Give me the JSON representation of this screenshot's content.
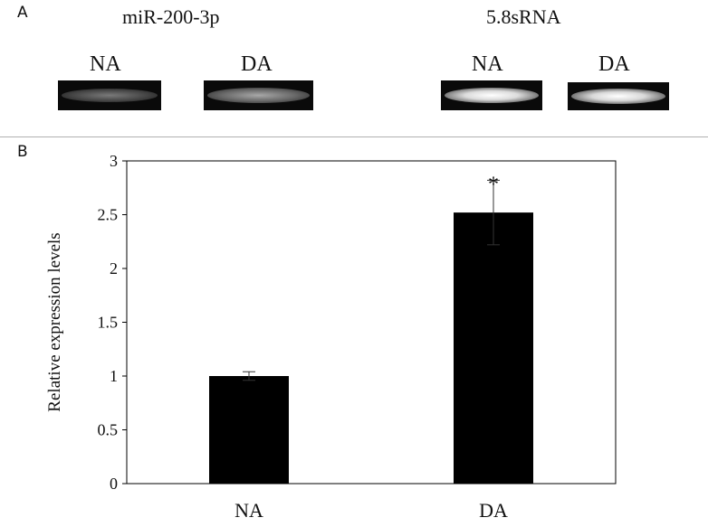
{
  "panel_a": {
    "label": "A",
    "gels": [
      {
        "title": "miR-200-3p",
        "lanes": [
          "NA",
          "DA"
        ]
      },
      {
        "title": "5.8sRNA",
        "lanes": [
          "NA",
          "DA"
        ]
      }
    ]
  },
  "panel_b": {
    "label": "B"
  },
  "colors": {
    "bar": "#000000",
    "axis": "#000000",
    "gel_background": "#0a0a0a"
  },
  "chart_data": {
    "type": "bar",
    "title": "",
    "xlabel": "",
    "ylabel": "Relative expression levels",
    "categories": [
      "NA",
      "DA"
    ],
    "values": [
      1.0,
      2.52
    ],
    "error": [
      0.04,
      0.3
    ],
    "annotations": [
      {
        "category": "DA",
        "text": "*"
      }
    ],
    "ylim": [
      0,
      3
    ],
    "yticks": [
      "0",
      "0.5",
      "1",
      "1.5",
      "2",
      "2.5",
      "3"
    ],
    "grid": false
  }
}
